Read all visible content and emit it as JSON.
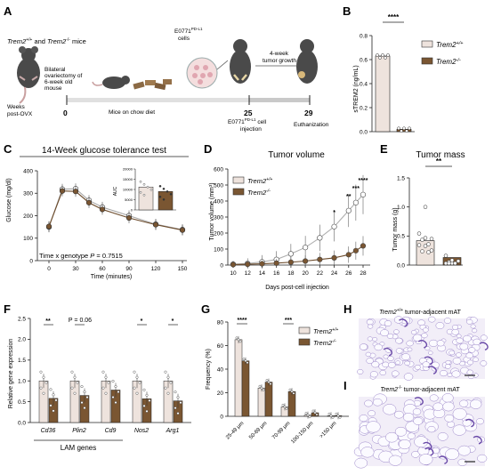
{
  "colors": {
    "wt": "#eee3dd",
    "ko": "#7a5632",
    "line_wt": "#9a9a9a",
    "line_ko": "#6b4a2a",
    "he_bg": "#f2eef8",
    "he_cell": "#8a6fc0"
  },
  "panel_labels": {
    "A": "A",
    "B": "B",
    "C": "C",
    "D": "D",
    "E": "E",
    "F": "F",
    "G": "G",
    "H": "H",
    "I": "I"
  },
  "genotypes": {
    "wt": "Trem2+/+",
    "ko": "Trem2-/-",
    "wt_base": "Trem2",
    "wt_sup": "+/+",
    "ko_base": "Trem2",
    "ko_sup": "-/-"
  },
  "panelA": {
    "mice_title_and": " and ",
    "mice_title_end": " mice",
    "ovx_label": [
      "Bilateral",
      "ovariectomy of",
      "6-week old",
      "mouse"
    ],
    "weeks_label": [
      "Weeks",
      "post-OVX"
    ],
    "tick_0": "0",
    "tick_25": "25",
    "tick_29": "29",
    "chow_label": "Mice on chow diet",
    "cells_label": "E0771",
    "cells_sup": "PD-L1",
    "cells_word": "cells",
    "growth_label": [
      "4-week",
      "tumor growth"
    ],
    "injection_label": "E0771",
    "injection_sup": "PD-L1",
    "injection_word": " cell",
    "injection_word2": "injection",
    "euth_label": "Euthanization"
  },
  "panelB": {
    "ylabel": "sTREM2 (ng/mL)",
    "sig": "****",
    "legend": [
      "Trem2+/+",
      "Trem2-/-"
    ]
  },
  "panelC": {
    "title": "14-Week glucose tolerance test",
    "ylabel": "Glucose (mg/dl)",
    "xlabel": "Time (minutes)",
    "stat_text": "Time x genotype ",
    "stat_p": "P",
    "stat_val": " = 0.7515",
    "inset_ylabel": "AUC"
  },
  "panelD": {
    "title": "Tumor volume",
    "ylabel": "Tumor volume (mm³)",
    "xlabel": "Days post-cell injection"
  },
  "panelE": {
    "title": "Tumor mass",
    "ylabel": "Tumor mass (g)",
    "sig": "**"
  },
  "panelF": {
    "ylabel": "Relative gene expression",
    "group_label": "LAM genes",
    "p_text": "P = 0.06"
  },
  "panelG": {
    "ylabel": "Frequency (%)"
  },
  "panelH": {
    "title_suffix": " tumor-adjacent mAT"
  },
  "panelI": {
    "title_suffix": " tumor-adjacent mAT"
  },
  "chart_data": [
    {
      "panel": "B",
      "type": "bar",
      "categories": [
        "Trem2+/+",
        "Trem2-/-"
      ],
      "values": [
        0.63,
        0.02
      ],
      "ylim": [
        0,
        0.8
      ],
      "yticks": [
        "0.0",
        "0.2",
        "0.4",
        "0.6",
        "0.8"
      ],
      "significance": "****"
    },
    {
      "panel": "C",
      "type": "line",
      "x": [
        0,
        15,
        30,
        45,
        60,
        90,
        120,
        150
      ],
      "xticks": [
        "0",
        "30",
        "60",
        "90",
        "120",
        "150"
      ],
      "series": [
        {
          "name": "Trem2+/+",
          "values": [
            150,
            318,
            320,
            268,
            238,
            200,
            162,
            138
          ]
        },
        {
          "name": "Trem2-/-",
          "values": [
            152,
            310,
            308,
            258,
            228,
            190,
            160,
            136
          ]
        }
      ],
      "ylim": [
        0,
        400
      ],
      "yticks": [
        "0",
        "100",
        "200",
        "300",
        "400"
      ],
      "inset": {
        "type": "bar",
        "ylabel": "AUC",
        "ylim": [
          0,
          20000
        ],
        "yticks": [
          "0",
          "5000",
          "10000",
          "15000",
          "20000"
        ],
        "values": [
          11200,
          9000
        ]
      }
    },
    {
      "panel": "D",
      "type": "line",
      "x": [
        10,
        12,
        14,
        16,
        18,
        20,
        22,
        24,
        26,
        27,
        28
      ],
      "xticks": [
        "10",
        "12",
        "14",
        "16",
        "18",
        "20",
        "22",
        "24",
        "26",
        "28"
      ],
      "series": [
        {
          "name": "Trem2+/+",
          "values": [
            5,
            10,
            20,
            35,
            70,
            110,
            170,
            240,
            340,
            390,
            440
          ]
        },
        {
          "name": "Trem2-/-",
          "values": [
            3,
            5,
            8,
            12,
            18,
            25,
            35,
            45,
            65,
            90,
            120
          ]
        }
      ],
      "ylim": [
        0,
        600
      ],
      "yticks": [
        "0",
        "100",
        "200",
        "300",
        "400",
        "500",
        "600"
      ],
      "significance": [
        {
          "x": 24,
          "label": "*"
        },
        {
          "x": 26,
          "label": "**"
        },
        {
          "x": 27,
          "label": "***"
        },
        {
          "x": 28,
          "label": "****"
        }
      ]
    },
    {
      "panel": "E",
      "type": "bar",
      "categories": [
        "Trem2+/+",
        "Trem2-/-"
      ],
      "values": [
        0.42,
        0.13
      ],
      "ylim": [
        0,
        1.5
      ],
      "yticks": [
        "0.0",
        "0.5",
        "1.0",
        "1.5"
      ],
      "significance": "**"
    },
    {
      "panel": "F",
      "type": "bar",
      "categories": [
        "Cd36",
        "Plin2",
        "Cd9",
        "Nos2",
        "Arg1"
      ],
      "series": [
        {
          "name": "Trem2+/+",
          "values": [
            1.0,
            1.0,
            1.0,
            1.0,
            1.0
          ]
        },
        {
          "name": "Trem2-/-",
          "values": [
            0.58,
            0.65,
            0.78,
            0.57,
            0.52
          ]
        }
      ],
      "ylim": [
        0,
        2.5
      ],
      "yticks": [
        "0.0",
        "0.5",
        "1.0",
        "1.5",
        "2.0",
        "2.5"
      ],
      "significance": [
        "**",
        "",
        "",
        "*",
        "*"
      ]
    },
    {
      "panel": "G",
      "type": "bar",
      "categories": [
        "25-49 μm",
        "50-69 μm",
        "70-99 μm",
        "100-150 μm",
        ">150 μm"
      ],
      "series": [
        {
          "name": "Trem2+/+",
          "values": [
            65,
            24,
            8,
            1,
            0.5
          ]
        },
        {
          "name": "Trem2-/-",
          "values": [
            47,
            29,
            21,
            3,
            0.5
          ]
        }
      ],
      "ylim": [
        0,
        80
      ],
      "yticks": [
        "0",
        "20",
        "40",
        "60",
        "80"
      ],
      "significance": [
        "****",
        "",
        "***",
        "",
        ""
      ]
    }
  ]
}
